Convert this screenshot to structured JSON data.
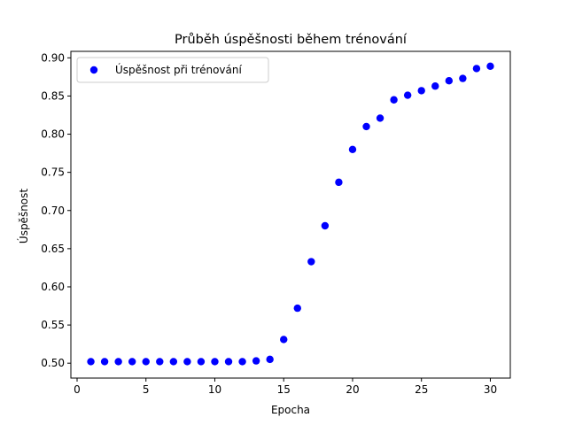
{
  "chart_data": {
    "type": "scatter",
    "title": "Průběh úspěšnosti během trénování",
    "xlabel": "Epocha",
    "ylabel": "Úspěšnost",
    "xlim": [
      -0.45,
      31.45
    ],
    "ylim": [
      0.4805,
      0.9085
    ],
    "xticks": [
      0,
      5,
      10,
      15,
      20,
      25,
      30
    ],
    "yticks": [
      0.5,
      0.55,
      0.6,
      0.65,
      0.7,
      0.75,
      0.8,
      0.85,
      0.9
    ],
    "ytick_labels": [
      "0.50",
      "0.55",
      "0.60",
      "0.65",
      "0.70",
      "0.75",
      "0.80",
      "0.85",
      "0.90"
    ],
    "grid": false,
    "legend_position": "upper-left",
    "series": [
      {
        "name": "Úspěšnost při trénování",
        "color": "#0000ff",
        "marker": "circle",
        "x": [
          1,
          2,
          3,
          4,
          5,
          6,
          7,
          8,
          9,
          10,
          11,
          12,
          13,
          14,
          15,
          16,
          17,
          18,
          19,
          20,
          21,
          22,
          23,
          24,
          25,
          26,
          27,
          28,
          29,
          30
        ],
        "y": [
          0.502,
          0.502,
          0.502,
          0.502,
          0.502,
          0.502,
          0.502,
          0.502,
          0.502,
          0.502,
          0.502,
          0.502,
          0.503,
          0.505,
          0.531,
          0.572,
          0.633,
          0.68,
          0.737,
          0.78,
          0.81,
          0.821,
          0.845,
          0.851,
          0.857,
          0.863,
          0.87,
          0.873,
          0.886,
          0.889
        ]
      }
    ]
  }
}
